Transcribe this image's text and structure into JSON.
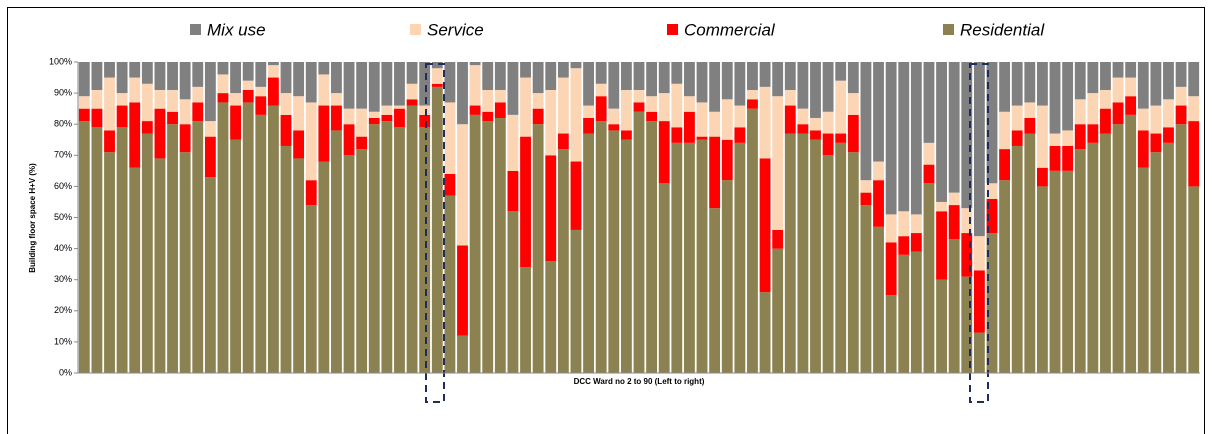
{
  "chart_data": {
    "type": "stacked_bar_100",
    "y_label": "Building floor space H+V  (%)",
    "x_label": "DCC Ward  no 2 to 90 (Left to  right)",
    "ylim": [
      0,
      100
    ],
    "yticks": [
      {
        "value": 0,
        "label": "0%"
      },
      {
        "value": 10,
        "label": "10%"
      },
      {
        "value": 20,
        "label": "20%"
      },
      {
        "value": 30,
        "label": "30%"
      },
      {
        "value": 40,
        "label": "40%"
      },
      {
        "value": 50,
        "label": "50%"
      },
      {
        "value": 60,
        "label": "60%"
      },
      {
        "value": 70,
        "label": "70%"
      },
      {
        "value": 80,
        "label": "80%"
      },
      {
        "value": 90,
        "label": "90%"
      },
      {
        "value": 100,
        "label": "100%"
      }
    ],
    "grid": false,
    "legend": "top",
    "series": [
      {
        "name": "Mix use",
        "color": "#808080",
        "values": [
          11,
          9,
          5,
          10,
          5,
          7,
          9,
          9,
          12,
          8,
          19,
          4,
          10,
          6,
          8,
          1,
          10,
          11,
          13,
          4,
          10,
          15,
          15,
          16,
          14,
          14,
          7,
          14,
          2,
          13,
          20,
          1,
          9,
          9,
          17,
          5,
          10,
          9,
          5,
          2,
          14,
          7,
          15,
          9,
          9,
          11,
          10,
          7,
          11,
          13,
          16,
          12,
          14,
          9,
          8,
          11,
          9,
          15,
          18,
          16,
          6,
          10,
          38,
          32,
          49,
          48,
          49,
          26,
          45,
          42,
          47,
          56,
          39,
          16,
          14,
          13,
          14,
          23,
          22,
          12,
          10,
          9,
          5,
          5,
          15,
          14,
          12,
          8,
          11
        ]
      },
      {
        "name": "Service",
        "color": "#fcd5b5",
        "values": [
          4,
          6,
          17,
          4,
          8,
          12,
          6,
          7,
          8,
          5,
          5,
          6,
          4,
          3,
          3,
          4,
          7,
          11,
          25,
          10,
          4,
          5,
          9,
          2,
          3,
          1,
          5,
          3,
          5,
          23,
          39,
          13,
          7,
          4,
          18,
          19,
          5,
          21,
          18,
          30,
          4,
          4,
          5,
          13,
          4,
          5,
          9,
          14,
          5,
          11,
          8,
          13,
          7,
          3,
          23,
          43,
          5,
          5,
          4,
          7,
          17,
          7,
          4,
          6,
          9,
          8,
          6,
          7,
          3,
          4,
          8,
          11,
          5,
          12,
          8,
          5,
          20,
          4,
          5,
          8,
          10,
          6,
          8,
          6,
          7,
          9,
          9,
          6,
          8
        ]
      },
      {
        "name": "Commercial",
        "color": "#ff0000",
        "values": [
          4,
          6,
          7,
          7,
          21,
          4,
          16,
          4,
          9,
          6,
          13,
          3,
          11,
          4,
          6,
          9,
          10,
          9,
          8,
          18,
          8,
          10,
          4,
          2,
          2,
          6,
          2,
          4,
          1,
          7,
          29,
          3,
          3,
          5,
          13,
          42,
          5,
          34,
          5,
          22,
          5,
          8,
          2,
          3,
          3,
          3,
          20,
          5,
          10,
          1,
          23,
          13,
          5,
          3,
          43,
          6,
          9,
          3,
          3,
          7,
          3,
          12,
          4,
          15,
          17,
          6,
          6,
          6,
          22,
          11,
          14,
          20,
          11,
          10,
          5,
          5,
          6,
          8,
          8,
          8,
          6,
          8,
          7,
          6,
          12,
          6,
          5,
          6,
          21
        ]
      },
      {
        "name": "Residential",
        "color": "#8c8150",
        "values": [
          81,
          79,
          71,
          79,
          66,
          77,
          69,
          80,
          71,
          81,
          63,
          87,
          75,
          87,
          83,
          86,
          73,
          69,
          54,
          68,
          78,
          70,
          72,
          80,
          81,
          79,
          86,
          79,
          92,
          57,
          12,
          83,
          81,
          82,
          52,
          34,
          80,
          36,
          72,
          46,
          77,
          81,
          78,
          75,
          84,
          81,
          61,
          74,
          74,
          75,
          53,
          62,
          74,
          85,
          26,
          40,
          77,
          77,
          75,
          70,
          74,
          71,
          54,
          47,
          25,
          38,
          39,
          61,
          30,
          43,
          31,
          13,
          45,
          62,
          73,
          77,
          60,
          65,
          65,
          72,
          74,
          77,
          80,
          83,
          66,
          71,
          74,
          80,
          60
        ]
      }
    ]
  }
}
